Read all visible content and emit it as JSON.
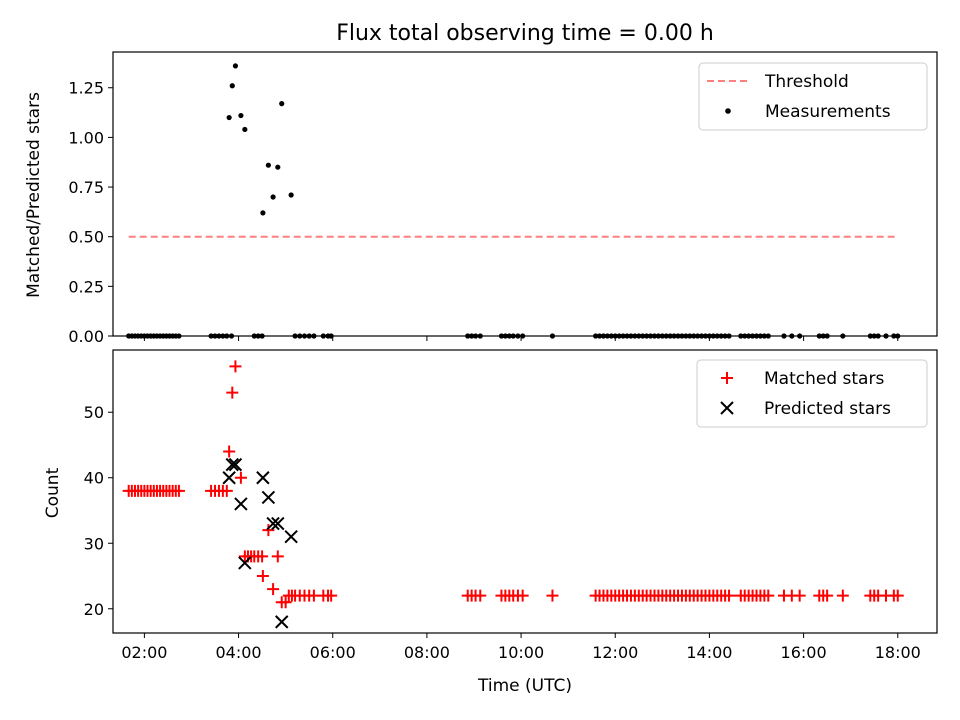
{
  "title": "Flux total observing time = 0.00 h",
  "colors": {
    "threshold": "#ff7f7f",
    "measurement": "#000000",
    "matched": "#ff0000",
    "predicted": "#000000"
  },
  "chart_data": [
    {
      "type": "scatter",
      "ylabel": "Matched/Predicted stars",
      "xlim": [
        "01:20",
        "18:50"
      ],
      "ylim": [
        0,
        1.43
      ],
      "yticks": [
        "0.00",
        "0.25",
        "0.50",
        "0.75",
        "1.00",
        "1.25"
      ],
      "legend_position": "top-right",
      "threshold": {
        "name": "Threshold",
        "y": 0.5,
        "x_range": [
          "01:40",
          "18:00"
        ]
      },
      "measurements": {
        "name": "Measurements",
        "points": [
          [
            "03:48",
            1.1
          ],
          [
            "03:52",
            1.26
          ],
          [
            "03:56",
            1.36
          ],
          [
            "04:03",
            1.11
          ],
          [
            "04:08",
            1.04
          ],
          [
            "04:31",
            0.62
          ],
          [
            "04:38",
            0.86
          ],
          [
            "04:44",
            0.7
          ],
          [
            "04:50",
            0.85
          ],
          [
            "04:55",
            1.17
          ],
          [
            "05:07",
            0.71
          ]
        ],
        "zero_times": [
          "01:40",
          "01:44",
          "01:48",
          "01:52",
          "01:56",
          "02:00",
          "02:04",
          "02:08",
          "02:12",
          "02:16",
          "02:20",
          "02:24",
          "02:28",
          "02:32",
          "02:36",
          "02:40",
          "02:44",
          "03:25",
          "03:30",
          "03:35",
          "03:40",
          "03:45",
          "03:51",
          "04:20",
          "04:25",
          "04:30",
          "05:12",
          "05:18",
          "05:24",
          "05:30",
          "05:36",
          "05:48",
          "05:54",
          "05:58",
          "08:52",
          "08:57",
          "09:02",
          "09:08",
          "09:35",
          "09:40",
          "09:45",
          "09:50",
          "09:56",
          "10:02",
          "10:40",
          "11:35",
          "11:40",
          "11:45",
          "11:50",
          "11:55",
          "12:00",
          "12:05",
          "12:10",
          "12:15",
          "12:20",
          "12:25",
          "12:30",
          "12:35",
          "12:40",
          "12:45",
          "12:50",
          "12:55",
          "13:00",
          "13:05",
          "13:10",
          "13:15",
          "13:20",
          "13:25",
          "13:30",
          "13:35",
          "13:40",
          "13:45",
          "13:50",
          "13:55",
          "14:00",
          "14:05",
          "14:10",
          "14:15",
          "14:20",
          "14:25",
          "14:40",
          "14:45",
          "14:50",
          "14:55",
          "15:00",
          "15:05",
          "15:10",
          "15:15",
          "15:35",
          "15:45",
          "15:55",
          "16:20",
          "16:25",
          "16:30",
          "16:50",
          "17:25",
          "17:30",
          "17:35",
          "17:45",
          "17:55",
          "18:00"
        ]
      }
    },
    {
      "type": "scatter",
      "xlabel": "Time (UTC)",
      "ylabel": "Count",
      "xlim": [
        "01:20",
        "18:50"
      ],
      "ylim": [
        16.3,
        59.5
      ],
      "xticks": [
        "02:00",
        "04:00",
        "06:00",
        "08:00",
        "10:00",
        "12:00",
        "14:00",
        "16:00",
        "18:00"
      ],
      "yticks": [
        "20",
        "30",
        "40",
        "50"
      ],
      "legend_position": "top-right",
      "series": [
        {
          "name": "Matched stars",
          "marker": "plus",
          "points": [
            [
              "01:40",
              38
            ],
            [
              "01:44",
              38
            ],
            [
              "01:48",
              38
            ],
            [
              "01:52",
              38
            ],
            [
              "01:56",
              38
            ],
            [
              "02:00",
              38
            ],
            [
              "02:04",
              38
            ],
            [
              "02:08",
              38
            ],
            [
              "02:12",
              38
            ],
            [
              "02:16",
              38
            ],
            [
              "02:20",
              38
            ],
            [
              "02:24",
              38
            ],
            [
              "02:28",
              38
            ],
            [
              "02:32",
              38
            ],
            [
              "02:36",
              38
            ],
            [
              "02:40",
              38
            ],
            [
              "02:44",
              38
            ],
            [
              "03:25",
              38
            ],
            [
              "03:30",
              38
            ],
            [
              "03:35",
              38
            ],
            [
              "03:40",
              38
            ],
            [
              "03:45",
              38
            ],
            [
              "03:48",
              44
            ],
            [
              "03:52",
              53
            ],
            [
              "03:56",
              57
            ],
            [
              "04:03",
              40
            ],
            [
              "04:08",
              28
            ],
            [
              "04:12",
              28
            ],
            [
              "04:16",
              28
            ],
            [
              "04:20",
              28
            ],
            [
              "04:25",
              28
            ],
            [
              "04:30",
              28
            ],
            [
              "04:31",
              25
            ],
            [
              "04:38",
              32
            ],
            [
              "04:44",
              23
            ],
            [
              "04:50",
              28
            ],
            [
              "04:55",
              21
            ],
            [
              "05:00",
              21
            ],
            [
              "05:04",
              22
            ],
            [
              "05:08",
              22
            ],
            [
              "05:12",
              22
            ],
            [
              "05:18",
              22
            ],
            [
              "05:24",
              22
            ],
            [
              "05:30",
              22
            ],
            [
              "05:36",
              22
            ],
            [
              "05:48",
              22
            ],
            [
              "05:54",
              22
            ],
            [
              "05:58",
              22
            ],
            [
              "08:52",
              22
            ],
            [
              "08:57",
              22
            ],
            [
              "09:02",
              22
            ],
            [
              "09:08",
              22
            ],
            [
              "09:35",
              22
            ],
            [
              "09:40",
              22
            ],
            [
              "09:45",
              22
            ],
            [
              "09:50",
              22
            ],
            [
              "09:56",
              22
            ],
            [
              "10:02",
              22
            ],
            [
              "10:40",
              22
            ],
            [
              "11:35",
              22
            ],
            [
              "11:40",
              22
            ],
            [
              "11:45",
              22
            ],
            [
              "11:50",
              22
            ],
            [
              "11:55",
              22
            ],
            [
              "12:00",
              22
            ],
            [
              "12:05",
              22
            ],
            [
              "12:10",
              22
            ],
            [
              "12:15",
              22
            ],
            [
              "12:20",
              22
            ],
            [
              "12:25",
              22
            ],
            [
              "12:30",
              22
            ],
            [
              "12:35",
              22
            ],
            [
              "12:40",
              22
            ],
            [
              "12:45",
              22
            ],
            [
              "12:50",
              22
            ],
            [
              "12:55",
              22
            ],
            [
              "13:00",
              22
            ],
            [
              "13:05",
              22
            ],
            [
              "13:10",
              22
            ],
            [
              "13:15",
              22
            ],
            [
              "13:20",
              22
            ],
            [
              "13:25",
              22
            ],
            [
              "13:30",
              22
            ],
            [
              "13:35",
              22
            ],
            [
              "13:40",
              22
            ],
            [
              "13:45",
              22
            ],
            [
              "13:50",
              22
            ],
            [
              "13:55",
              22
            ],
            [
              "14:00",
              22
            ],
            [
              "14:05",
              22
            ],
            [
              "14:10",
              22
            ],
            [
              "14:15",
              22
            ],
            [
              "14:20",
              22
            ],
            [
              "14:25",
              22
            ],
            [
              "14:40",
              22
            ],
            [
              "14:45",
              22
            ],
            [
              "14:50",
              22
            ],
            [
              "14:55",
              22
            ],
            [
              "15:00",
              22
            ],
            [
              "15:05",
              22
            ],
            [
              "15:10",
              22
            ],
            [
              "15:15",
              22
            ],
            [
              "15:35",
              22
            ],
            [
              "15:45",
              22
            ],
            [
              "15:55",
              22
            ],
            [
              "16:20",
              22
            ],
            [
              "16:25",
              22
            ],
            [
              "16:30",
              22
            ],
            [
              "16:50",
              22
            ],
            [
              "17:25",
              22
            ],
            [
              "17:30",
              22
            ],
            [
              "17:35",
              22
            ],
            [
              "17:45",
              22
            ],
            [
              "17:55",
              22
            ],
            [
              "18:00",
              22
            ]
          ]
        },
        {
          "name": "Predicted stars",
          "marker": "x",
          "points": [
            [
              "03:48",
              40
            ],
            [
              "03:52",
              42
            ],
            [
              "03:56",
              42
            ],
            [
              "04:03",
              36
            ],
            [
              "04:08",
              27
            ],
            [
              "04:31",
              40
            ],
            [
              "04:38",
              37
            ],
            [
              "04:44",
              33
            ],
            [
              "04:50",
              33
            ],
            [
              "04:55",
              18
            ],
            [
              "05:07",
              31
            ]
          ]
        }
      ]
    }
  ]
}
